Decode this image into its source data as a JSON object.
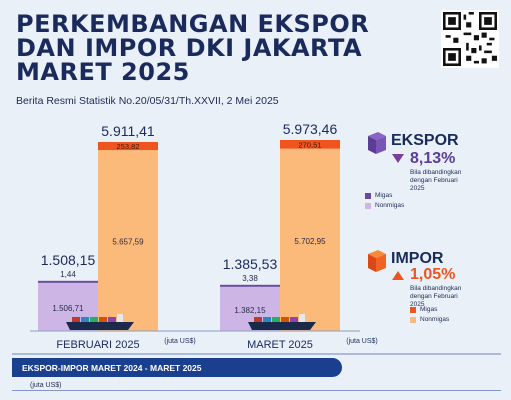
{
  "header": {
    "title": "PERKEMBANGAN EKSPOR DAN IMPOR DKI JAKARTA MARET 2025",
    "subtitle": "Berita Resmi Statistik No.20/05/31/Th.XXVII, 2 Mei 2025"
  },
  "ekspor": {
    "label": "EKSPOR",
    "change": "8,13%",
    "direction": "down",
    "note": "Bila dibandingkan dengan Februari 2025",
    "legend_migas": "Migas",
    "legend_nonmigas": "Nonmigas",
    "color_migas": "#6a4a9c",
    "color_nonmigas": "#cdb6e6"
  },
  "impor": {
    "label": "IMPOR",
    "change": "1,05%",
    "direction": "up",
    "note": "Bila dibandingkan dengan Februari 2025",
    "legend_migas": "Migas",
    "legend_nonmigas": "Nonmigas",
    "color_migas": "#f0541e",
    "color_nonmigas": "#fbb97a"
  },
  "footer": {
    "bar_label": "EKSPOR-IMPOR MARET 2024 - MARET 2025",
    "unit_note": "(juta US$)"
  },
  "chart_data": {
    "type": "bar",
    "categories": [
      "FEBRUARI 2025",
      "MARET 2025"
    ],
    "unit_label": "(juta US$)",
    "series": [
      {
        "group": "Ekspor",
        "totals": [
          "1.508,15",
          "1.385,53"
        ],
        "total_values": [
          1508.15,
          1385.53
        ],
        "stack": [
          {
            "name": "Nonmigas",
            "values": [
              1506.71,
              1382.15
            ],
            "labels": [
              "1.506,71",
              "1.382,15"
            ],
            "color": "#cdb6e6"
          },
          {
            "name": "Migas",
            "values": [
              1.44,
              3.38
            ],
            "labels": [
              "1,44",
              "3,38"
            ],
            "color": "#6a4a9c"
          }
        ]
      },
      {
        "group": "Impor",
        "totals": [
          "5.911,41",
          "5.973,46"
        ],
        "total_values": [
          5911.41,
          5973.46
        ],
        "stack": [
          {
            "name": "Nonmigas",
            "values": [
              5657.59,
              5702.95
            ],
            "labels": [
              "5.657,59",
              "5.702,95"
            ],
            "color": "#fbb97a"
          },
          {
            "name": "Migas",
            "values": [
              253.82,
              270.51
            ],
            "labels": [
              "253,82",
              "270,51"
            ],
            "color": "#f0541e"
          }
        ]
      }
    ]
  }
}
